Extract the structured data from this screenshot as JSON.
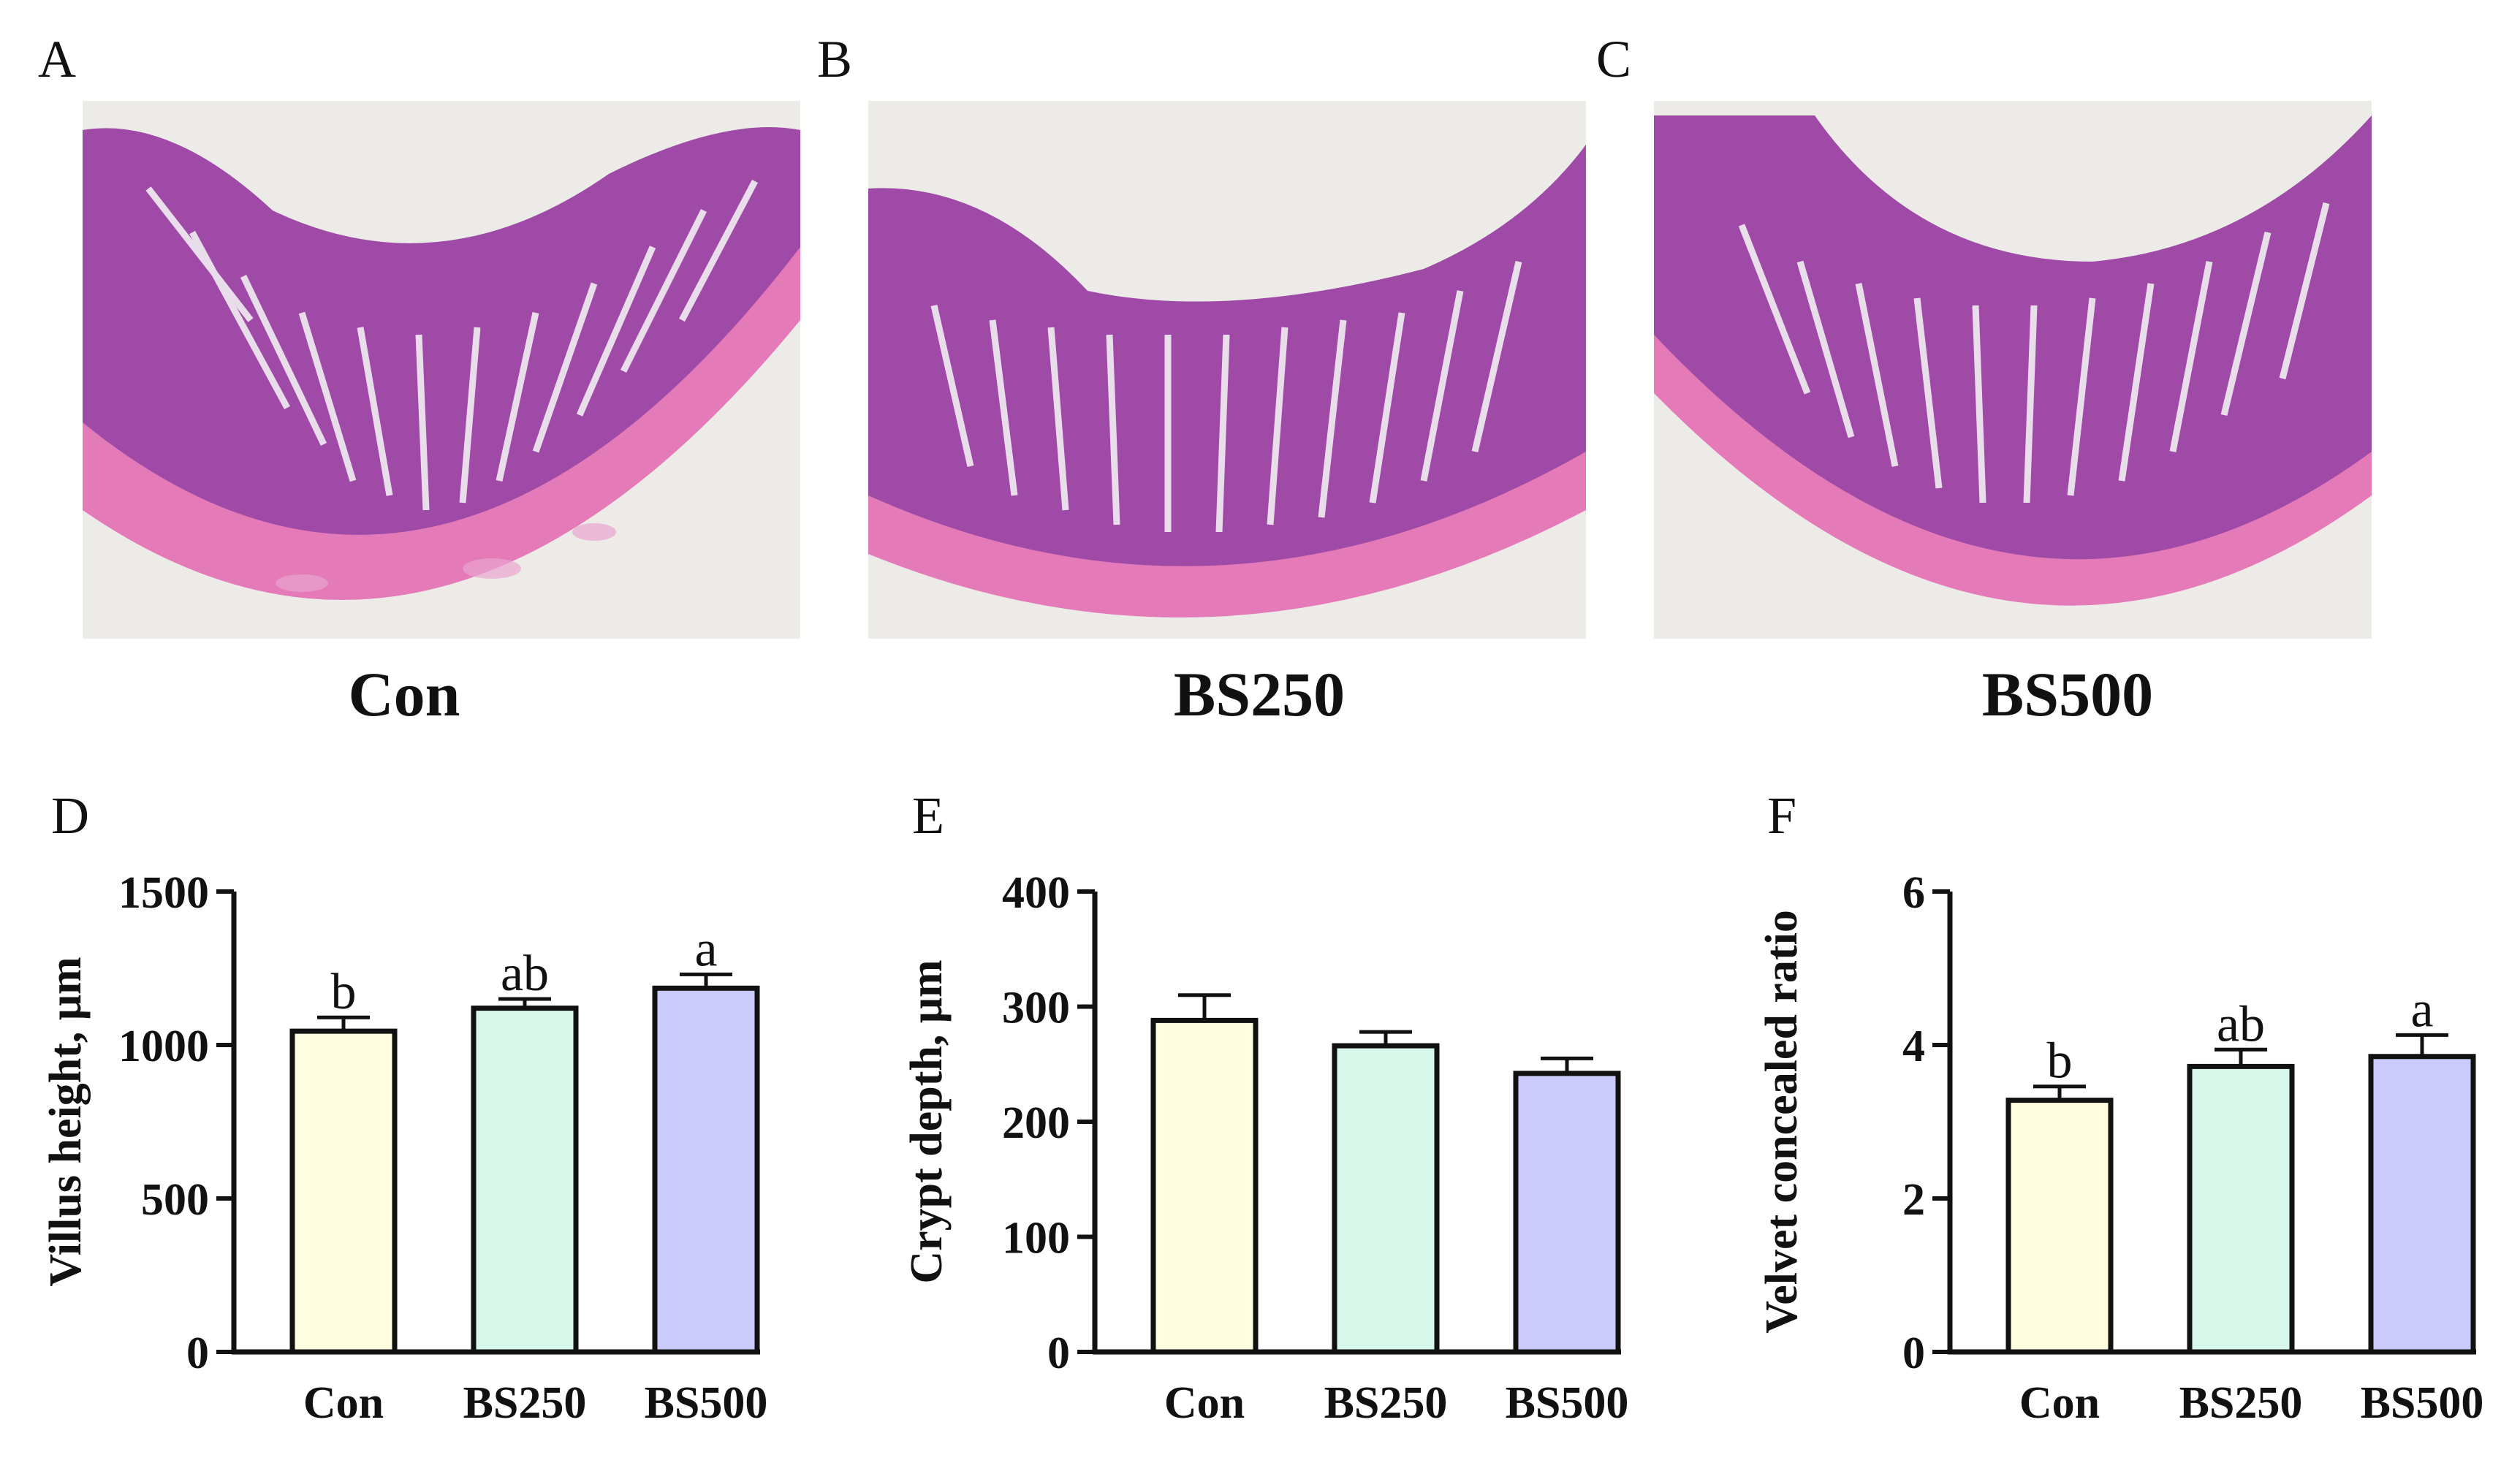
{
  "panels": {
    "a": {
      "letter": "A",
      "caption": "Con"
    },
    "b": {
      "letter": "B",
      "caption": "BS250"
    },
    "c": {
      "letter": "C",
      "caption": "BS500"
    },
    "d": {
      "letter": "D"
    },
    "e": {
      "letter": "E"
    },
    "f": {
      "letter": "F"
    }
  },
  "colors": {
    "Con": "#fefde0",
    "BS250": "#d6f7ea",
    "BS500": "#cbcafc",
    "tissue": "#a04aa8",
    "muscle": "#e57ab8",
    "background": "#ecebe8"
  },
  "chart_data": [
    {
      "type": "bar",
      "title": "",
      "xlabel": "",
      "ylabel": "Villus height, μm",
      "categories": [
        "Con",
        "BS250",
        "BS500"
      ],
      "values": [
        1045,
        1120,
        1185
      ],
      "errors": [
        45,
        30,
        45
      ],
      "letters": [
        "b",
        "ab",
        "a"
      ],
      "ylim": [
        0,
        1500
      ],
      "yticks": [
        0,
        500,
        1000,
        1500
      ],
      "grid": false
    },
    {
      "type": "bar",
      "title": "",
      "xlabel": "",
      "ylabel": "Crypt depth, μm",
      "categories": [
        "Con",
        "BS250",
        "BS500"
      ],
      "values": [
        288,
        266,
        242
      ],
      "errors": [
        22,
        12,
        13
      ],
      "letters": [
        "",
        "",
        ""
      ],
      "ylim": [
        0,
        400
      ],
      "yticks": [
        0,
        100,
        200,
        300,
        400
      ],
      "grid": false
    },
    {
      "type": "bar",
      "title": "",
      "xlabel": "",
      "ylabel": "Velvet concealed ratio",
      "categories": [
        "Con",
        "BS250",
        "BS500"
      ],
      "values": [
        3.28,
        3.72,
        3.85
      ],
      "errors": [
        0.18,
        0.22,
        0.28
      ],
      "letters": [
        "b",
        "ab",
        "a"
      ],
      "ylim": [
        0,
        6
      ],
      "yticks": [
        0,
        2,
        4,
        6
      ],
      "grid": false
    }
  ]
}
